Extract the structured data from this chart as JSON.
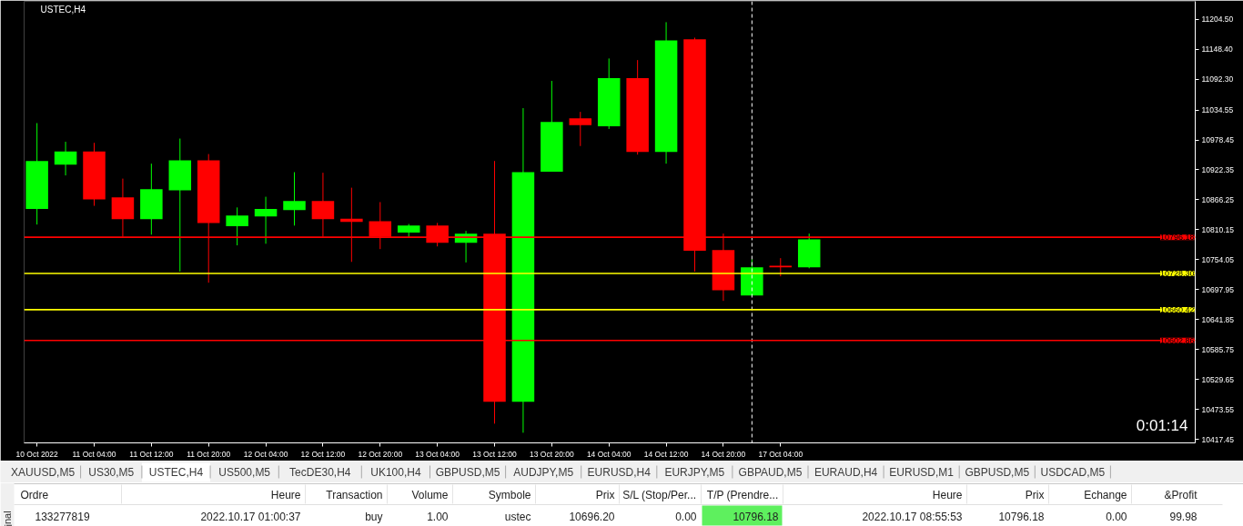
{
  "chart_data": [
    {
      "type": "candlestick",
      "title": "USTEC,H4",
      "categories": [
        "10 Oct 2022",
        null,
        "11 Oct 04:00",
        null,
        "11 Oct 12:00",
        null,
        "11 Oct 20:00",
        null,
        "12 Oct 04:00",
        null,
        "12 Oct 12:00",
        null,
        "12 Oct 20:00",
        null,
        "13 Oct 04:00",
        null,
        "13 Oct 12:00",
        null,
        "13 Oct 20:00",
        null,
        "14 Oct 04:00",
        null,
        "14 Oct 12:00",
        null,
        "14 Oct 20:00",
        null,
        "17 Oct 04:00",
        null,
        null,
        null,
        null,
        null,
        null,
        null,
        null,
        null,
        null,
        null,
        null,
        null,
        null
      ],
      "ohlc": [
        [
          10849,
          11010,
          10820,
          10939
        ],
        [
          10932,
          10975,
          10912,
          10957
        ],
        [
          10957,
          10973,
          10855,
          10867
        ],
        [
          10871,
          10906,
          10797,
          10830
        ],
        [
          10830,
          10934,
          10801,
          10886
        ],
        [
          10884,
          10981,
          10732,
          10940
        ],
        [
          10940,
          10952,
          10711,
          10823
        ],
        [
          10817,
          10852,
          10781,
          10837
        ],
        [
          10835,
          10872,
          10784,
          10849
        ],
        [
          10847,
          10918,
          10818,
          10864
        ],
        [
          10864,
          10917,
          10797,
          10830
        ],
        [
          10831,
          10889,
          10750,
          10825
        ],
        [
          10826,
          10862,
          10774,
          10797
        ],
        [
          10805,
          10821,
          10795,
          10818
        ],
        [
          10818,
          10823,
          10779,
          10786
        ],
        [
          10786,
          10808,
          10749,
          10803
        ],
        [
          10803,
          10939,
          10447,
          10488
        ],
        [
          10488,
          11038,
          10430,
          10918
        ],
        [
          10919,
          11089,
          10919,
          11012
        ],
        [
          11019,
          11031,
          10967,
          11006
        ],
        [
          11004,
          11131,
          10999,
          11094
        ],
        [
          11094,
          11128,
          10951,
          10956
        ],
        [
          10956,
          11199,
          10934,
          11165
        ],
        [
          11167,
          11170,
          10732,
          10771
        ],
        [
          10772,
          10803,
          10677,
          10697
        ],
        [
          10687,
          10755,
          10687,
          10740
        ],
        [
          10743,
          10757,
          10723,
          10740
        ],
        [
          10740,
          10803,
          10738,
          10792
        ],
        null,
        null,
        null,
        null,
        null,
        null,
        null,
        null,
        null,
        null,
        null,
        null,
        null
      ],
      "colors": [
        "#00ff00",
        "#00ff00",
        "#ff0000",
        "#ff0000",
        "#00ff00",
        "#00ff00",
        "#ff0000",
        "#00ff00",
        "#00ff00",
        "#00ff00",
        "#ff0000",
        "#ff0000",
        "#ff0000",
        "#00ff00",
        "#ff0000",
        "#00ff00",
        "#ff0000",
        "#00ff00",
        "#00ff00",
        "#ff0000",
        "#00ff00",
        "#ff0000",
        "#00ff00",
        "#ff0000",
        "#ff0000",
        "#00ff00",
        "#ff0000",
        "#00ff00",
        null,
        null,
        null,
        null,
        null,
        null,
        null,
        null,
        null,
        null,
        null,
        null,
        null
      ],
      "ylim": [
        10411,
        11238
      ],
      "yticks": [
        {
          "value": 11204.5,
          "label": "11204.50"
        },
        {
          "value": 11148.4,
          "label": "11148.40"
        },
        {
          "value": 11092.3,
          "label": "11092.30"
        },
        {
          "value": 11034.55,
          "label": "11034.55"
        },
        {
          "value": 10978.45,
          "label": "10978.45"
        },
        {
          "value": 10922.35,
          "label": "10922.35"
        },
        {
          "value": 10866.25,
          "label": "10866.25"
        },
        {
          "value": 10810.15,
          "label": "10810.15"
        },
        {
          "value": 10754.05,
          "label": "10754.05"
        },
        {
          "value": 10697.95,
          "label": "10697.95"
        },
        {
          "value": 10641.85,
          "label": "10641.85"
        },
        {
          "value": 10585.75,
          "label": "10585.75"
        },
        {
          "value": 10529.65,
          "label": "10529.65"
        },
        {
          "value": 10473.55,
          "label": "10473.55"
        },
        {
          "value": 10417.45,
          "label": "10417.45"
        }
      ],
      "ref_lines": [
        {
          "axis": "y",
          "value": 10796.18,
          "label": "10796.18",
          "color": "#ff0000"
        },
        {
          "axis": "y",
          "value": 10728.3,
          "label": "10728.30",
          "color": "#ffff00"
        },
        {
          "axis": "y",
          "value": 10660.42,
          "label": "10660.42",
          "color": "#ffff00"
        },
        {
          "axis": "y",
          "value": 10602.86,
          "label": "10602.86",
          "color": "#ff0000"
        }
      ],
      "annotations": [
        "0:01:14"
      ]
    },
    {
      "type": "other",
      "categories": [
        "XAUUSD,M5",
        "US30,M5",
        "USTEC,H4",
        "US500,M5",
        "TecDE30,H4",
        "UK100,H4",
        "GBPUSD,M5",
        "AUDJPY,M5",
        "EURUSD,H4",
        "EURJPY,M5",
        "GBPAUD,M5",
        "EURAUD,H4",
        "EURUSD,M1",
        "GBPUSD,M5",
        "USDCAD,M5"
      ],
      "colors": [
        "#f0f0f0",
        "#f0f0f0",
        "#ffffff",
        "#f0f0f0",
        "#f0f0f0",
        "#f0f0f0",
        "#f0f0f0",
        "#f0f0f0",
        "#f0f0f0",
        "#f0f0f0",
        "#f0f0f0",
        "#f0f0f0",
        "#f0f0f0",
        "#f0f0f0",
        "#f0f0f0"
      ]
    },
    {
      "type": "other",
      "title": "inal",
      "categories": [
        "Ordre",
        "Heure",
        "Transaction",
        "Volume",
        "Symbole",
        "Prix",
        "S/L (Stop/Per...",
        "T/P (Prendre...",
        "Heure",
        "Prix",
        "Echange",
        "&Profit"
      ],
      "annotations": [
        "133277819",
        "2022.10.17 01:00:37",
        "buy",
        "1.00",
        "ustec",
        "10696.20",
        "0.00",
        "10796.18",
        "2022.10.17 08:55:53",
        "10796.18",
        "0.00",
        "99.98"
      ],
      "colors": [
        null,
        null,
        null,
        null,
        null,
        null,
        null,
        "#5ef05e",
        null,
        null,
        null,
        null
      ]
    }
  ]
}
